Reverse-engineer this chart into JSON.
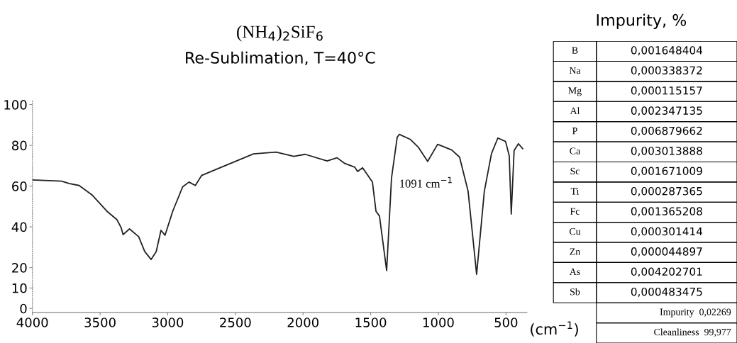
{
  "chart_data": [
    {
      "type": "line",
      "title": "(NH$_{4}$)$_{2}$SiF$_{6}$",
      "subtitle": "Re-Sublimation, T=40°C",
      "xlabel": "(cm$^{−1}$)",
      "x": [
        4000,
        3785,
        3730,
        3655,
        3560,
        3450,
        3375,
        3345,
        3330,
        3283,
        3215,
        3170,
        3123,
        3085,
        3050,
        3020,
        2963,
        2890,
        2843,
        2796,
        2750,
        2628,
        2366,
        2199,
        2068,
        1984,
        1822,
        1749,
        1691,
        1618,
        1597,
        1560,
        1487,
        1461,
        1435,
        1382,
        1346,
        1304,
        1288,
        1209,
        1147,
        1079,
        1005,
        901,
        843,
        780,
        717,
        660,
        607,
        560,
        503,
        476,
        461,
        440,
        408,
        377
      ],
      "series": [
        {
          "color": "#222222",
          "values": [
            63,
            62.4,
            61.3,
            60.3,
            55.7,
            47.7,
            43.5,
            39.7,
            36.2,
            39,
            35.2,
            27.9,
            24,
            27.9,
            38.3,
            35.9,
            47.7,
            59.6,
            62,
            60.3,
            65.2,
            68.6,
            75.8,
            76.7,
            74.6,
            75.6,
            72.3,
            73.9,
            71.1,
            69.3,
            67.2,
            69,
            62,
            47.7,
            45.3,
            18.5,
            64,
            84,
            85.4,
            83,
            79,
            72.1,
            80.5,
            77.7,
            74.2,
            57.5,
            16.7,
            57.5,
            76,
            83.6,
            81.9,
            74.9,
            46.3,
            77.4,
            80.8,
            78.4
          ]
        }
      ],
      "xlim": [
        4000,
        345
      ],
      "ylim": [
        -2,
        102
      ],
      "xticks": [
        4000,
        3500,
        3000,
        2500,
        2000,
        1500,
        1000,
        500
      ],
      "yticks": [
        0,
        10,
        20,
        40,
        60,
        80,
        100
      ],
      "annotations": [
        {
          "text": "1091 cm$^{−1}$",
          "x": 1091,
          "y": 72
        }
      ],
      "grid": false,
      "marker": "none",
      "line_style": "solid"
    },
    {
      "type": "other",
      "title": "Impurity, %",
      "categories": [
        "B",
        "Na",
        "Mg",
        "Al",
        "P",
        "Ca",
        "Sc",
        "Ti",
        "Fc",
        "Cu",
        "Zn",
        "As",
        "Sb"
      ],
      "value_labels": [
        "0,001648404",
        "0,000338372",
        "0,000115157",
        "0,002347135",
        "0,006879662",
        "0,003013888",
        "0,001671009",
        "0,000287365",
        "0,001365208",
        "0,000301414",
        "0,000044897",
        "0,004202701",
        "0,000483475"
      ],
      "annotations": [
        "Impurity  0,02269",
        "Cleanliness  99,977"
      ]
    }
  ]
}
